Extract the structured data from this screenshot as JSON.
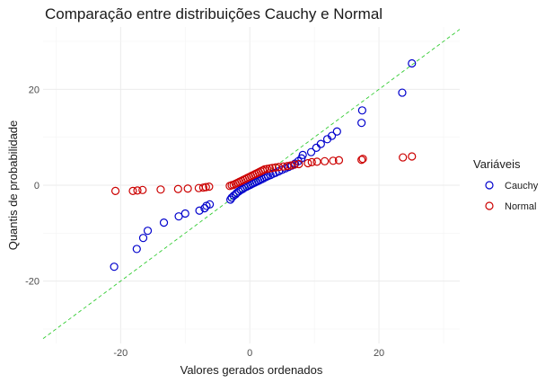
{
  "chart_data": {
    "type": "scatter",
    "title": "Comparação entre distribuições Cauchy e Normal",
    "xlabel": "Valores gerados ordenados",
    "ylabel": "Quantis de probabilidade",
    "xlim": [
      -32,
      32.5
    ],
    "ylim": [
      -33,
      33
    ],
    "x_ticks": [
      -20,
      0,
      20
    ],
    "y_ticks": [
      -20,
      0,
      20
    ],
    "grid": true,
    "legend_title": "Variáveis",
    "legend_position": "right",
    "reference_line": {
      "slope": 1,
      "intercept": 0,
      "style": "dashed",
      "color": "#33cc33"
    },
    "series": [
      {
        "name": "Cauchy",
        "color": "#0000cc",
        "points": [
          [
            -21,
            -17
          ],
          [
            -17.5,
            -13.3
          ],
          [
            -16.5,
            -11
          ],
          [
            -15.8,
            -9.5
          ],
          [
            -13.3,
            -7.8
          ],
          [
            -11,
            -6.5
          ],
          [
            -10,
            -5.9
          ],
          [
            -7.8,
            -5.3
          ],
          [
            -7,
            -4.8
          ],
          [
            -6.7,
            -4.3
          ],
          [
            -6.2,
            -4
          ],
          [
            -3,
            -3
          ],
          [
            -2.8,
            -2.6
          ],
          [
            -2.5,
            -2.2
          ],
          [
            -2.2,
            -1.9
          ],
          [
            -2,
            -1.6
          ],
          [
            -1.7,
            -1.3
          ],
          [
            -1.4,
            -1
          ],
          [
            -1.1,
            -0.8
          ],
          [
            -0.8,
            -0.5
          ],
          [
            -0.5,
            -0.3
          ],
          [
            -0.2,
            -0.1
          ],
          [
            0.1,
            0.1
          ],
          [
            0.4,
            0.3
          ],
          [
            0.7,
            0.5
          ],
          [
            1,
            0.7
          ],
          [
            1.3,
            0.9
          ],
          [
            1.6,
            1.1
          ],
          [
            1.9,
            1.3
          ],
          [
            2.2,
            1.5
          ],
          [
            2.5,
            1.7
          ],
          [
            2.8,
            1.9
          ],
          [
            3.2,
            2.1
          ],
          [
            3.6,
            2.4
          ],
          [
            4,
            2.6
          ],
          [
            4.5,
            2.9
          ],
          [
            5,
            3.2
          ],
          [
            5.5,
            3.5
          ],
          [
            6,
            3.8
          ],
          [
            6.5,
            4.1
          ],
          [
            7,
            4.5
          ],
          [
            7.5,
            5
          ],
          [
            8,
            5.6
          ],
          [
            8.2,
            6.3
          ],
          [
            9.5,
            6.9
          ],
          [
            10.3,
            7.8
          ],
          [
            11,
            8.6
          ],
          [
            12,
            9.6
          ],
          [
            12.7,
            10.3
          ],
          [
            13.5,
            11.2
          ],
          [
            17.3,
            13
          ],
          [
            17.4,
            15.6
          ],
          [
            23.6,
            19.3
          ],
          [
            25.1,
            25.4
          ]
        ]
      },
      {
        "name": "Normal",
        "color": "#cc0000",
        "points": [
          [
            -20.8,
            -1.2
          ],
          [
            -18.1,
            -1.2
          ],
          [
            -17.4,
            -1.1
          ],
          [
            -16.6,
            -1
          ],
          [
            -13.8,
            -0.9
          ],
          [
            -11.1,
            -0.8
          ],
          [
            -9.6,
            -0.7
          ],
          [
            -7.9,
            -0.6
          ],
          [
            -7.2,
            -0.5
          ],
          [
            -6.8,
            -0.4
          ],
          [
            -6.3,
            -0.3
          ],
          [
            -3.1,
            -0.15
          ],
          [
            -2.8,
            0
          ],
          [
            -2.5,
            0.1
          ],
          [
            -2.2,
            0.3
          ],
          [
            -1.9,
            0.5
          ],
          [
            -1.6,
            0.7
          ],
          [
            -1.3,
            0.9
          ],
          [
            -1,
            1.1
          ],
          [
            -0.7,
            1.3
          ],
          [
            -0.4,
            1.5
          ],
          [
            -0.1,
            1.7
          ],
          [
            0.2,
            1.9
          ],
          [
            0.5,
            2.1
          ],
          [
            0.8,
            2.3
          ],
          [
            1.1,
            2.5
          ],
          [
            1.4,
            2.7
          ],
          [
            1.7,
            2.9
          ],
          [
            2,
            3.1
          ],
          [
            2.3,
            3.3
          ],
          [
            2.7,
            3.4
          ],
          [
            3.1,
            3.5
          ],
          [
            3.5,
            3.6
          ],
          [
            4,
            3.7
          ],
          [
            4.5,
            3.8
          ],
          [
            5.2,
            3.9
          ],
          [
            5.8,
            4
          ],
          [
            6.3,
            4.1
          ],
          [
            6.9,
            4.3
          ],
          [
            7.6,
            4.4
          ],
          [
            9,
            4.6
          ],
          [
            9.6,
            4.8
          ],
          [
            10.4,
            4.9
          ],
          [
            11.6,
            5
          ],
          [
            12.9,
            5.1
          ],
          [
            13.8,
            5.2
          ],
          [
            17.3,
            5.3
          ],
          [
            17.5,
            5.5
          ],
          [
            23.7,
            5.8
          ],
          [
            25.1,
            6
          ]
        ]
      }
    ]
  }
}
